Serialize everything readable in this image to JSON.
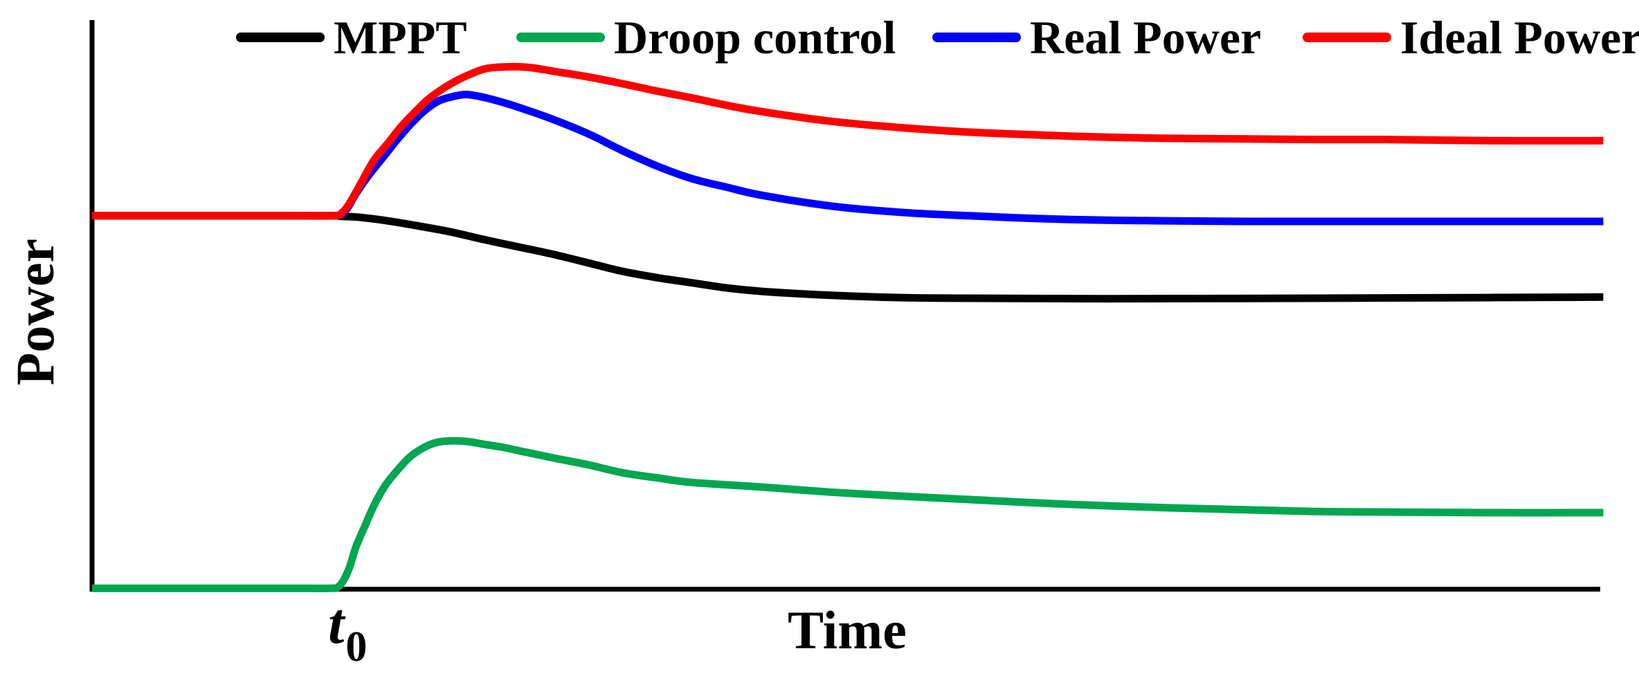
{
  "figure": {
    "background": "#FFFFFF",
    "axis_color": "#000000",
    "ylabel": "Power",
    "xlabel": "Time",
    "t0_label": {
      "base": "t",
      "sub": "0"
    },
    "legend": [
      {
        "label": "MPPT",
        "color": "#000000"
      },
      {
        "label": "Droop control",
        "color": "#00A651"
      },
      {
        "label": "Real Power",
        "color": "#0000FF"
      },
      {
        "label": "Ideal Power",
        "color": "#FF0000"
      }
    ]
  },
  "chart_data": {
    "type": "line",
    "title": "",
    "xlabel": "Time",
    "ylabel": "Power",
    "xlim": [
      0,
      10.02
    ],
    "ylim": [
      0,
      10
    ],
    "grid": false,
    "ticks": "none (qualitative sketch, L-shaped axes only)",
    "legend_position": "top",
    "x_units": "normalized time (t0 = disturbance instant at x ≈ 1.65)",
    "y_units": "normalized power",
    "annotations": [
      {
        "text": "t0",
        "x": 1.71,
        "y": -0.9,
        "note": "italic label below x-axis marking disturbance time"
      }
    ],
    "series": [
      {
        "name": "MPPT",
        "color": "#000000",
        "line_width": 11,
        "points": [
          [
            0,
            6.56
          ],
          [
            0.8,
            6.56
          ],
          [
            1.3,
            6.56
          ],
          [
            1.6,
            6.56
          ],
          [
            1.65,
            6.55
          ],
          [
            1.78,
            6.53
          ],
          [
            1.96,
            6.47
          ],
          [
            2.14,
            6.39
          ],
          [
            2.37,
            6.28
          ],
          [
            2.6,
            6.14
          ],
          [
            2.83,
            6.01
          ],
          [
            3.06,
            5.88
          ],
          [
            3.29,
            5.73
          ],
          [
            3.52,
            5.58
          ],
          [
            3.75,
            5.47
          ],
          [
            3.98,
            5.38
          ],
          [
            4.21,
            5.29
          ],
          [
            4.44,
            5.23
          ],
          [
            4.9,
            5.16
          ],
          [
            5.36,
            5.12
          ],
          [
            5.81,
            5.11
          ],
          [
            6.73,
            5.1
          ],
          [
            8.11,
            5.11
          ],
          [
            9.26,
            5.12
          ],
          [
            10.02,
            5.13
          ]
        ]
      },
      {
        "name": "Droop control",
        "color": "#00A651",
        "line_width": 11,
        "points": [
          [
            0,
            0.01
          ],
          [
            0.8,
            0.01
          ],
          [
            1.3,
            0.01
          ],
          [
            1.58,
            0.01
          ],
          [
            1.63,
            0.03
          ],
          [
            1.67,
            0.16
          ],
          [
            1.71,
            0.4
          ],
          [
            1.75,
            0.74
          ],
          [
            1.81,
            1.11
          ],
          [
            1.87,
            1.47
          ],
          [
            1.94,
            1.8
          ],
          [
            2.01,
            2.04
          ],
          [
            2.1,
            2.3
          ],
          [
            2.19,
            2.47
          ],
          [
            2.28,
            2.57
          ],
          [
            2.37,
            2.6
          ],
          [
            2.49,
            2.59
          ],
          [
            2.6,
            2.54
          ],
          [
            2.74,
            2.48
          ],
          [
            2.88,
            2.4
          ],
          [
            3.06,
            2.3
          ],
          [
            3.29,
            2.18
          ],
          [
            3.52,
            2.04
          ],
          [
            3.75,
            1.95
          ],
          [
            3.98,
            1.87
          ],
          [
            4.44,
            1.79
          ],
          [
            4.9,
            1.7
          ],
          [
            5.36,
            1.63
          ],
          [
            5.81,
            1.57
          ],
          [
            6.27,
            1.51
          ],
          [
            6.73,
            1.46
          ],
          [
            7.19,
            1.42
          ],
          [
            7.65,
            1.39
          ],
          [
            8.11,
            1.36
          ],
          [
            8.57,
            1.35
          ],
          [
            9.26,
            1.34
          ],
          [
            10.02,
            1.34
          ]
        ]
      },
      {
        "name": "Real Power",
        "color": "#0000FF",
        "line_width": 11,
        "points": [
          [
            0,
            6.56
          ],
          [
            0.8,
            6.56
          ],
          [
            1.3,
            6.56
          ],
          [
            1.6,
            6.56
          ],
          [
            1.66,
            6.6
          ],
          [
            1.7,
            6.72
          ],
          [
            1.75,
            6.95
          ],
          [
            1.84,
            7.29
          ],
          [
            1.94,
            7.62
          ],
          [
            2.03,
            7.92
          ],
          [
            2.12,
            8.19
          ],
          [
            2.21,
            8.42
          ],
          [
            2.3,
            8.58
          ],
          [
            2.4,
            8.66
          ],
          [
            2.49,
            8.69
          ],
          [
            2.6,
            8.64
          ],
          [
            2.74,
            8.54
          ],
          [
            2.88,
            8.42
          ],
          [
            3.06,
            8.25
          ],
          [
            3.29,
            8.0
          ],
          [
            3.52,
            7.7
          ],
          [
            3.75,
            7.43
          ],
          [
            3.98,
            7.21
          ],
          [
            4.21,
            7.06
          ],
          [
            4.44,
            6.92
          ],
          [
            4.9,
            6.73
          ],
          [
            5.36,
            6.62
          ],
          [
            5.81,
            6.56
          ],
          [
            6.27,
            6.51
          ],
          [
            6.73,
            6.48
          ],
          [
            7.19,
            6.47
          ],
          [
            7.65,
            6.46
          ],
          [
            8.57,
            6.46
          ],
          [
            10.02,
            6.46
          ]
        ]
      },
      {
        "name": "Ideal Power",
        "color": "#FF0000",
        "line_width": 11,
        "points": [
          [
            0,
            6.56
          ],
          [
            0.8,
            6.56
          ],
          [
            1.3,
            6.56
          ],
          [
            1.6,
            6.56
          ],
          [
            1.66,
            6.62
          ],
          [
            1.71,
            6.79
          ],
          [
            1.78,
            7.12
          ],
          [
            1.87,
            7.54
          ],
          [
            1.96,
            7.83
          ],
          [
            2.05,
            8.13
          ],
          [
            2.14,
            8.38
          ],
          [
            2.23,
            8.61
          ],
          [
            2.33,
            8.8
          ],
          [
            2.42,
            8.94
          ],
          [
            2.51,
            9.05
          ],
          [
            2.6,
            9.14
          ],
          [
            2.69,
            9.17
          ],
          [
            2.81,
            9.18
          ],
          [
            2.92,
            9.16
          ],
          [
            3.06,
            9.1
          ],
          [
            3.29,
            9.0
          ],
          [
            3.52,
            8.88
          ],
          [
            3.75,
            8.75
          ],
          [
            3.98,
            8.63
          ],
          [
            4.21,
            8.5
          ],
          [
            4.44,
            8.39
          ],
          [
            4.9,
            8.22
          ],
          [
            5.36,
            8.11
          ],
          [
            5.81,
            8.03
          ],
          [
            6.27,
            7.98
          ],
          [
            6.73,
            7.94
          ],
          [
            7.19,
            7.92
          ],
          [
            7.65,
            7.91
          ],
          [
            8.11,
            7.9
          ],
          [
            8.57,
            7.9
          ],
          [
            9.26,
            7.88
          ],
          [
            10.02,
            7.88
          ]
        ]
      }
    ]
  }
}
